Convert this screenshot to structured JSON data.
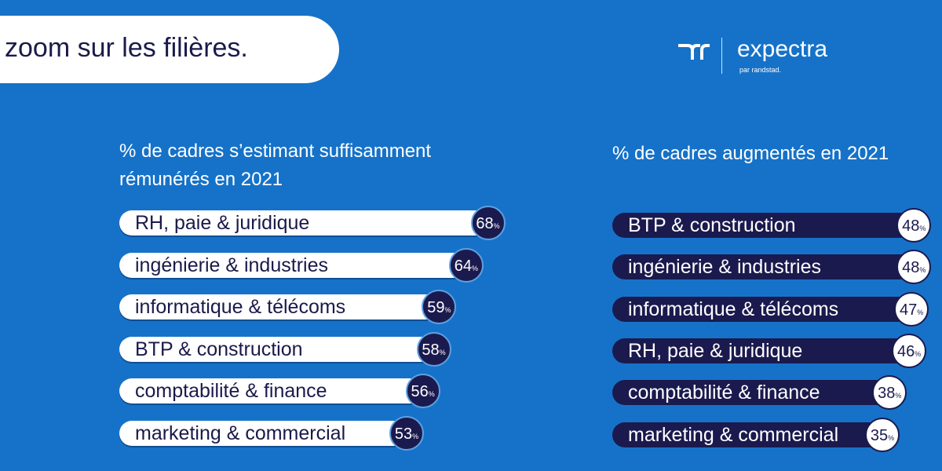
{
  "title": "zoom sur les filières.",
  "logo": {
    "name": "expectra",
    "sub": "par randstad."
  },
  "colors": {
    "background": "#1672c8",
    "navy": "#1b1a4e",
    "white": "#ffffff"
  },
  "chart_data": [
    {
      "type": "bar",
      "title_line1": "% de cadres s’estimant suffisamment",
      "title_line2": "rémunérés en 2021",
      "unit": "%",
      "categories": [
        "RH, paie & juridique",
        "ingénierie & industries",
        "informatique & télécoms",
        "BTP & construction",
        "comptabilité & finance",
        "marketing & commercial"
      ],
      "values": [
        68,
        64,
        59,
        58,
        56,
        53
      ]
    },
    {
      "type": "bar",
      "title_line1": "% de cadres augmentés en 2021",
      "unit": "%",
      "categories": [
        "BTP & construction",
        "ingénierie & industries",
        "informatique & télécoms",
        "RH, paie & juridique",
        "comptabilité & finance",
        "marketing & commercial"
      ],
      "values": [
        48,
        48,
        47,
        46,
        38,
        35
      ]
    }
  ]
}
